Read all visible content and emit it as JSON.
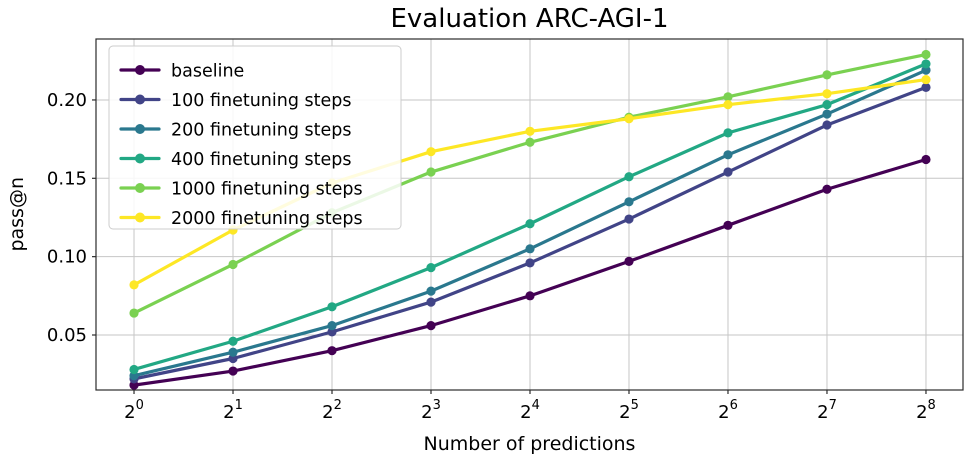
{
  "figure": {
    "title": "Evaluation ARC-AGI-1",
    "xlabel": "Number of predictions",
    "ylabel": "pass@n"
  },
  "chart_data": {
    "type": "line",
    "title": "Evaluation ARC-AGI-1",
    "xlabel": "Number of predictions",
    "ylabel": "pass@n",
    "x_scale": "log2",
    "x_exponents": [
      0,
      1,
      2,
      3,
      4,
      5,
      6,
      7,
      8
    ],
    "x_tick_labels": [
      "2^0",
      "2^1",
      "2^2",
      "2^3",
      "2^4",
      "2^5",
      "2^6",
      "2^7",
      "2^8"
    ],
    "y_ticks": [
      0.05,
      0.1,
      0.15,
      0.2
    ],
    "ylim": [
      0.0149,
      0.2389
    ],
    "xlim_log2": [
      -0.384,
      8.374
    ],
    "grid": true,
    "legend_position": "upper left",
    "colors": {
      "grid": "#c6c6c6",
      "spine": "#2b2b2b",
      "legend_border": "#cccccc"
    },
    "series": [
      {
        "name": "baseline",
        "color": "#440154",
        "values": [
          0.018,
          0.027,
          0.04,
          0.056,
          0.075,
          0.097,
          0.12,
          0.143,
          0.162
        ]
      },
      {
        "name": "100 finetuning steps",
        "color": "#414487",
        "values": [
          0.022,
          0.035,
          0.052,
          0.071,
          0.096,
          0.124,
          0.154,
          0.184,
          0.208
        ]
      },
      {
        "name": "200 finetuning steps",
        "color": "#2a788e",
        "values": [
          0.024,
          0.039,
          0.056,
          0.078,
          0.105,
          0.135,
          0.165,
          0.191,
          0.219
        ]
      },
      {
        "name": "400 finetuning steps",
        "color": "#22a884",
        "values": [
          0.028,
          0.046,
          0.068,
          0.093,
          0.121,
          0.151,
          0.179,
          0.197,
          0.223
        ]
      },
      {
        "name": "1000 finetuning steps",
        "color": "#7ad151",
        "values": [
          0.064,
          0.095,
          0.128,
          0.154,
          0.173,
          0.189,
          0.202,
          0.216,
          0.229
        ]
      },
      {
        "name": "2000 finetuning steps",
        "color": "#fde725",
        "values": [
          0.082,
          0.117,
          0.147,
          0.167,
          0.18,
          0.188,
          0.197,
          0.204,
          0.213
        ]
      }
    ]
  }
}
